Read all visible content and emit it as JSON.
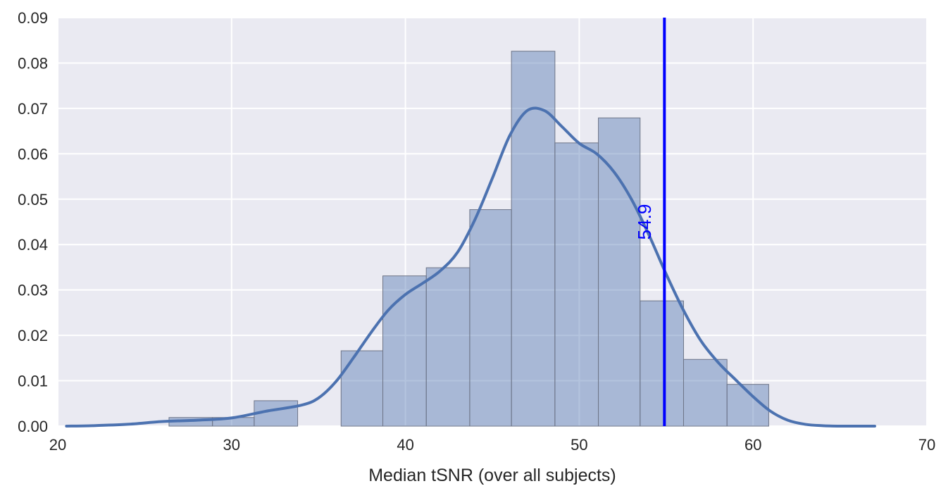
{
  "chart_data": {
    "type": "bar",
    "subtype": "histogram-with-kde",
    "title": "",
    "xlabel": "Median tSNR (over all subjects)",
    "ylabel": "",
    "xlim": [
      20,
      70
    ],
    "ylim": [
      0,
      0.09
    ],
    "xticks": [
      20,
      30,
      40,
      50,
      60,
      70
    ],
    "yticks": [
      0.0,
      0.01,
      0.02,
      0.03,
      0.04,
      0.05,
      0.06,
      0.07,
      0.08,
      0.09
    ],
    "xtick_labels": [
      "20",
      "30",
      "40",
      "50",
      "60",
      "70"
    ],
    "ytick_labels": [
      "0.00",
      "0.01",
      "0.02",
      "0.03",
      "0.04",
      "0.05",
      "0.06",
      "0.07",
      "0.08",
      "0.09"
    ],
    "grid": true,
    "background_color": "#eaeaf2",
    "bins": {
      "edges": [
        26.4,
        28.9,
        31.3,
        33.8,
        36.3,
        38.7,
        41.2,
        43.7,
        46.1,
        48.6,
        51.1,
        53.5,
        56.0,
        58.5,
        60.9
      ],
      "values": [
        0.0019,
        0.0019,
        0.0056,
        0.0,
        0.0166,
        0.0331,
        0.0349,
        0.0477,
        0.0826,
        0.0624,
        0.0679,
        0.0276,
        0.0147,
        0.0092
      ],
      "fill_color": "#4c72b0",
      "fill_opacity": 0.42
    },
    "kde": {
      "x": [
        20.5,
        22,
        24,
        26,
        28,
        30,
        32,
        34,
        35,
        36,
        37,
        38,
        39,
        40,
        41,
        42,
        43,
        44,
        45,
        46,
        47,
        48,
        49,
        50,
        51,
        52,
        53,
        54,
        55,
        56,
        57,
        58,
        59,
        60,
        61,
        62,
        63,
        64,
        65,
        66,
        67
      ],
      "y": [
        0.0,
        0.0001,
        0.0004,
        0.001,
        0.0013,
        0.0018,
        0.0033,
        0.0046,
        0.0062,
        0.0098,
        0.015,
        0.0205,
        0.0255,
        0.029,
        0.0315,
        0.0342,
        0.0383,
        0.0455,
        0.0546,
        0.064,
        0.0695,
        0.0695,
        0.066,
        0.0623,
        0.06,
        0.056,
        0.05,
        0.0422,
        0.0335,
        0.0255,
        0.0188,
        0.014,
        0.0102,
        0.0065,
        0.0033,
        0.0013,
        0.0004,
        0.0001,
        0.0,
        0.0,
        0.0
      ],
      "color": "#4c72b0"
    },
    "vline": {
      "x": 54.9,
      "label": "54.9",
      "color": "#0000ff"
    }
  }
}
